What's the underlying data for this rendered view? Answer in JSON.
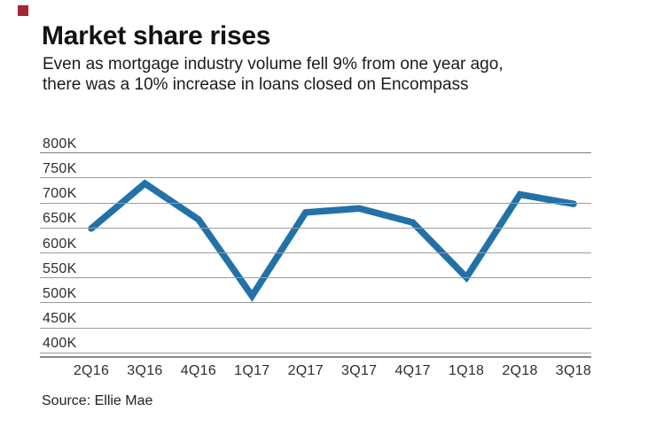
{
  "brand": {
    "accent_color": "#a22633"
  },
  "header": {
    "title": "Market share rises",
    "subtitle_line1": "Even as mortgage industry volume fell 9% from one year ago,",
    "subtitle_line2": "there was a 10% increase in loans closed on Encompass"
  },
  "chart_data": {
    "type": "line",
    "title": "Market share rises",
    "categories": [
      "2Q16",
      "3Q16",
      "4Q16",
      "1Q17",
      "2Q17",
      "3Q17",
      "4Q17",
      "1Q18",
      "2Q18",
      "3Q18"
    ],
    "values_thousands": [
      649,
      739,
      667,
      514,
      681,
      689,
      661,
      551,
      717,
      698
    ],
    "y_ticks": [
      "800K",
      "750K",
      "700K",
      "650K",
      "600K",
      "550K",
      "500K",
      "450K",
      "400K"
    ],
    "ylim_thousands": [
      400,
      800
    ],
    "y_tick_step_thousands": 50,
    "xlabel": "",
    "ylabel": "",
    "grid": true,
    "legend": "none",
    "line_color": "#2271a8",
    "gridline_color": "#9b9b9b"
  },
  "footer": {
    "source": "Source: Ellie Mae"
  }
}
